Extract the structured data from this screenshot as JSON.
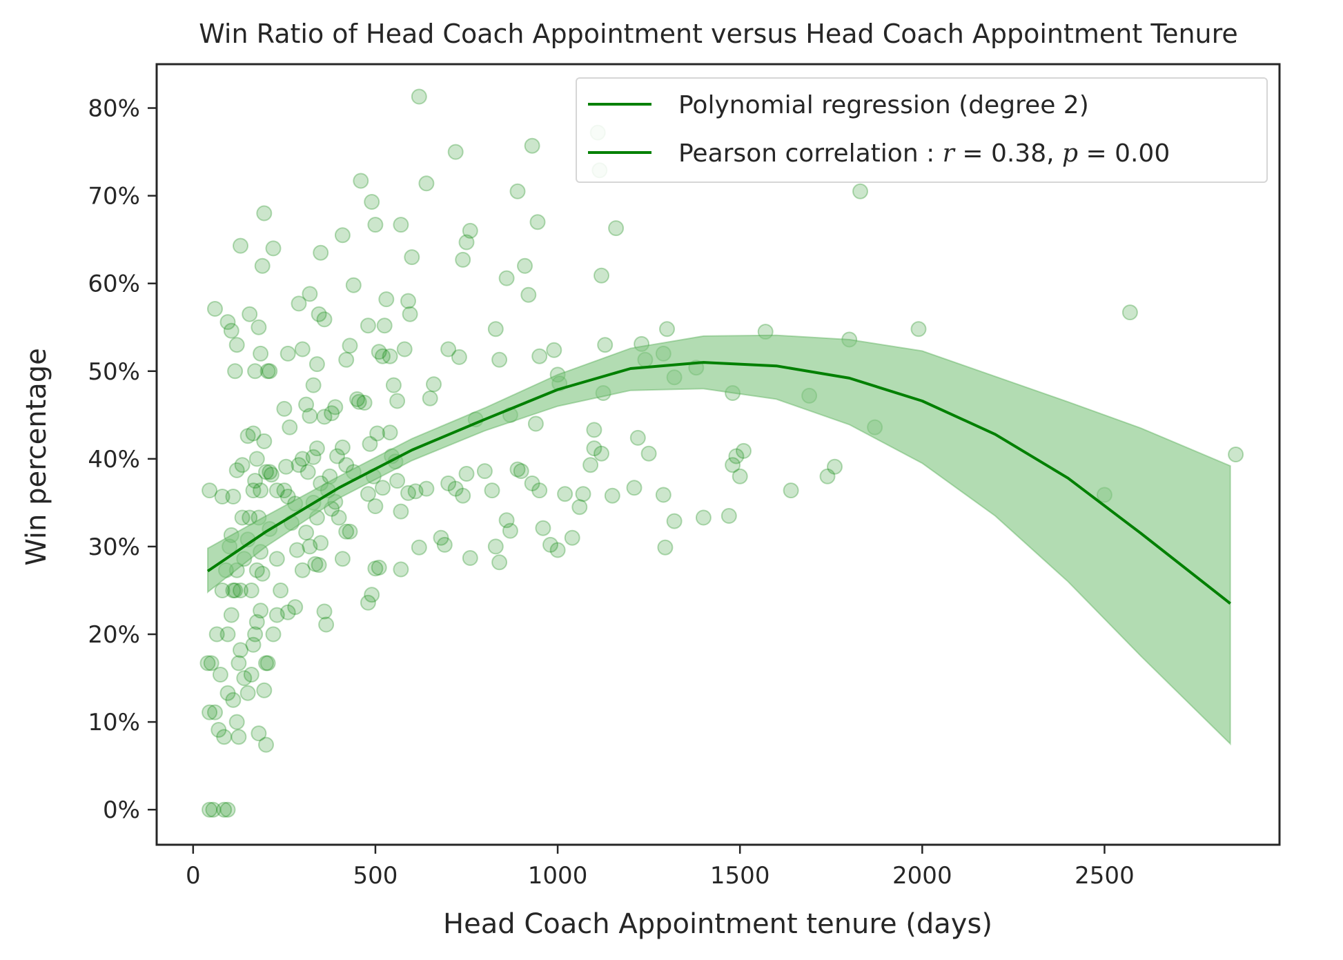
{
  "chart_data": {
    "type": "scatter",
    "title": "Win Ratio of Head Coach Appointment versus Head Coach Appointment Tenure",
    "xlabel": "Head Coach Appointment tenure (days)",
    "ylabel": "Win percentage",
    "xlim": [
      -100,
      2980
    ],
    "ylim": [
      -4,
      85
    ],
    "xticks": [
      0,
      500,
      1000,
      1500,
      2000,
      2500
    ],
    "xtick_labels": [
      "0",
      "500",
      "1000",
      "1500",
      "2000",
      "2500"
    ],
    "yticks": [
      0,
      10,
      20,
      30,
      40,
      50,
      60,
      70,
      80
    ],
    "ytick_labels": [
      "0%",
      "10%",
      "20%",
      "30%",
      "40%",
      "50%",
      "60%",
      "70%",
      "80%"
    ],
    "grid": false,
    "legend_position": "top-right",
    "colors": {
      "series": "#008000",
      "band": "#7fc47f",
      "axes": "#262626"
    },
    "legend": [
      {
        "label": "Polynomial regression (degree 2)"
      },
      {
        "label_prefix": "Pearson correlation : ",
        "r_symbol": "r",
        "r_value": " = 0.38, ",
        "p_symbol": "p",
        "p_value": " = 0.00"
      }
    ],
    "regression": {
      "x": [
        40,
        200,
        400,
        600,
        800,
        1000,
        1200,
        1400,
        1600,
        1800,
        2000,
        2200,
        2400,
        2600,
        2845
      ],
      "y": [
        27.2,
        31.7,
        36.7,
        41.0,
        44.5,
        47.9,
        50.3,
        51.0,
        50.6,
        49.2,
        46.6,
        42.8,
        37.8,
        31.5,
        23.5
      ],
      "ci_lower": [
        24.8,
        30.0,
        35.5,
        39.8,
        43.2,
        46.0,
        47.8,
        48.0,
        46.8,
        43.9,
        39.5,
        33.5,
        26.0,
        17.5,
        7.5
      ],
      "ci_upper": [
        29.8,
        33.5,
        38.0,
        42.3,
        45.8,
        49.6,
        52.6,
        54.0,
        54.1,
        53.6,
        52.3,
        49.4,
        46.5,
        43.5,
        39.2
      ]
    },
    "points": [
      [
        45,
        0
      ],
      [
        55,
        0
      ],
      [
        85,
        0
      ],
      [
        95,
        0
      ],
      [
        40,
        16.7
      ],
      [
        50,
        16.7
      ],
      [
        45,
        11.1
      ],
      [
        60,
        11.1
      ],
      [
        70,
        9.1
      ],
      [
        85,
        8.3
      ],
      [
        95,
        13.3
      ],
      [
        110,
        12.5
      ],
      [
        120,
        10.0
      ],
      [
        125,
        8.3
      ],
      [
        180,
        8.7
      ],
      [
        200,
        7.4
      ],
      [
        75,
        15.4
      ],
      [
        95,
        20.0
      ],
      [
        105,
        22.2
      ],
      [
        110,
        25.0
      ],
      [
        125,
        16.7
      ],
      [
        130,
        18.2
      ],
      [
        140,
        15.0
      ],
      [
        150,
        13.3
      ],
      [
        160,
        15.4
      ],
      [
        165,
        18.8
      ],
      [
        170,
        20.0
      ],
      [
        175,
        21.4
      ],
      [
        185,
        22.7
      ],
      [
        195,
        13.6
      ],
      [
        200,
        16.7
      ],
      [
        205,
        16.7
      ],
      [
        220,
        20.0
      ],
      [
        230,
        22.2
      ],
      [
        260,
        22.5
      ],
      [
        280,
        23.1
      ],
      [
        65,
        20.0
      ],
      [
        80,
        25.0
      ],
      [
        90,
        27.3
      ],
      [
        100,
        30.0
      ],
      [
        105,
        31.3
      ],
      [
        115,
        25.0
      ],
      [
        120,
        27.3
      ],
      [
        130,
        25.0
      ],
      [
        135,
        33.3
      ],
      [
        140,
        28.6
      ],
      [
        150,
        30.8
      ],
      [
        155,
        33.3
      ],
      [
        160,
        25.0
      ],
      [
        165,
        36.4
      ],
      [
        170,
        37.5
      ],
      [
        175,
        27.3
      ],
      [
        180,
        33.3
      ],
      [
        185,
        29.4
      ],
      [
        190,
        26.9
      ],
      [
        200,
        38.5
      ],
      [
        210,
        32.0
      ],
      [
        215,
        38.2
      ],
      [
        230,
        28.6
      ],
      [
        240,
        25.0
      ],
      [
        250,
        36.4
      ],
      [
        260,
        35.7
      ],
      [
        270,
        32.7
      ],
      [
        285,
        29.6
      ],
      [
        300,
        27.3
      ],
      [
        310,
        31.6
      ],
      [
        320,
        30.0
      ],
      [
        330,
        35.0
      ],
      [
        335,
        28.0
      ],
      [
        340,
        33.3
      ],
      [
        345,
        27.9
      ],
      [
        350,
        30.4
      ],
      [
        360,
        22.6
      ],
      [
        365,
        21.1
      ],
      [
        370,
        36.4
      ],
      [
        380,
        34.3
      ],
      [
        390,
        35.1
      ],
      [
        400,
        33.3
      ],
      [
        410,
        28.6
      ],
      [
        420,
        31.7
      ],
      [
        430,
        31.7
      ],
      [
        480,
        23.6
      ],
      [
        490,
        24.5
      ],
      [
        500,
        27.5
      ],
      [
        510,
        27.6
      ],
      [
        570,
        27.4
      ],
      [
        620,
        29.9
      ],
      [
        45,
        36.4
      ],
      [
        80,
        35.7
      ],
      [
        110,
        35.7
      ],
      [
        120,
        38.7
      ],
      [
        135,
        39.3
      ],
      [
        150,
        42.6
      ],
      [
        165,
        42.9
      ],
      [
        175,
        40.0
      ],
      [
        185,
        36.4
      ],
      [
        195,
        42.0
      ],
      [
        210,
        38.5
      ],
      [
        230,
        36.4
      ],
      [
        255,
        39.1
      ],
      [
        265,
        43.6
      ],
      [
        280,
        34.9
      ],
      [
        290,
        39.3
      ],
      [
        300,
        40.0
      ],
      [
        315,
        38.5
      ],
      [
        320,
        44.9
      ],
      [
        330,
        40.2
      ],
      [
        340,
        41.2
      ],
      [
        350,
        37.2
      ],
      [
        360,
        44.8
      ],
      [
        375,
        38.0
      ],
      [
        380,
        45.2
      ],
      [
        395,
        40.3
      ],
      [
        410,
        41.3
      ],
      [
        420,
        39.3
      ],
      [
        440,
        38.5
      ],
      [
        455,
        46.5
      ],
      [
        470,
        46.4
      ],
      [
        480,
        36.0
      ],
      [
        485,
        41.7
      ],
      [
        495,
        38.0
      ],
      [
        500,
        34.6
      ],
      [
        505,
        42.9
      ],
      [
        520,
        36.7
      ],
      [
        540,
        43.0
      ],
      [
        545,
        40.3
      ],
      [
        555,
        39.7
      ],
      [
        560,
        37.5
      ],
      [
        570,
        34.0
      ],
      [
        590,
        36.1
      ],
      [
        610,
        36.3
      ],
      [
        640,
        36.6
      ],
      [
        680,
        31.0
      ],
      [
        690,
        30.2
      ],
      [
        700,
        37.2
      ],
      [
        720,
        36.6
      ],
      [
        740,
        35.8
      ],
      [
        750,
        38.3
      ],
      [
        760,
        28.7
      ],
      [
        800,
        38.6
      ],
      [
        820,
        36.4
      ],
      [
        830,
        30.0
      ],
      [
        840,
        28.2
      ],
      [
        860,
        33.0
      ],
      [
        870,
        31.8
      ],
      [
        890,
        38.8
      ],
      [
        930,
        37.2
      ],
      [
        950,
        36.4
      ],
      [
        960,
        32.1
      ],
      [
        980,
        30.2
      ],
      [
        1000,
        29.6
      ],
      [
        1020,
        36.0
      ],
      [
        1040,
        31.0
      ],
      [
        1060,
        34.5
      ],
      [
        1070,
        36.0
      ],
      [
        1090,
        39.3
      ],
      [
        1100,
        41.2
      ],
      [
        1120,
        40.6
      ],
      [
        1150,
        35.8
      ],
      [
        1210,
        36.7
      ],
      [
        1220,
        42.4
      ],
      [
        1250,
        40.6
      ],
      [
        1290,
        35.9
      ],
      [
        1295,
        29.9
      ],
      [
        1320,
        32.9
      ],
      [
        1400,
        33.3
      ],
      [
        1470,
        33.5
      ],
      [
        1480,
        39.3
      ],
      [
        1490,
        40.3
      ],
      [
        1500,
        38.0
      ],
      [
        1510,
        40.9
      ],
      [
        1640,
        36.4
      ],
      [
        1740,
        38.0
      ],
      [
        1760,
        39.1
      ],
      [
        1870,
        43.6
      ],
      [
        2500,
        35.9
      ],
      [
        2860,
        40.5
      ],
      [
        60,
        57.1
      ],
      [
        95,
        55.6
      ],
      [
        105,
        54.6
      ],
      [
        115,
        50.0
      ],
      [
        120,
        53.0
      ],
      [
        130,
        64.3
      ],
      [
        155,
        56.5
      ],
      [
        170,
        50.0
      ],
      [
        180,
        55.0
      ],
      [
        185,
        52.0
      ],
      [
        190,
        62.0
      ],
      [
        195,
        68.0
      ],
      [
        205,
        50.0
      ],
      [
        210,
        50.0
      ],
      [
        220,
        64.0
      ],
      [
        250,
        45.7
      ],
      [
        260,
        52.0
      ],
      [
        290,
        57.7
      ],
      [
        300,
        52.5
      ],
      [
        310,
        46.2
      ],
      [
        320,
        58.8
      ],
      [
        330,
        48.4
      ],
      [
        340,
        50.8
      ],
      [
        345,
        56.5
      ],
      [
        350,
        63.5
      ],
      [
        360,
        55.9
      ],
      [
        390,
        45.9
      ],
      [
        410,
        65.5
      ],
      [
        420,
        51.3
      ],
      [
        430,
        52.9
      ],
      [
        440,
        59.8
      ],
      [
        450,
        46.8
      ],
      [
        460,
        71.7
      ],
      [
        480,
        55.2
      ],
      [
        490,
        69.3
      ],
      [
        500,
        66.7
      ],
      [
        510,
        52.2
      ],
      [
        520,
        51.7
      ],
      [
        525,
        55.2
      ],
      [
        530,
        58.2
      ],
      [
        540,
        51.7
      ],
      [
        550,
        48.4
      ],
      [
        560,
        46.6
      ],
      [
        570,
        66.7
      ],
      [
        580,
        52.5
      ],
      [
        590,
        58.0
      ],
      [
        595,
        56.5
      ],
      [
        600,
        63.0
      ],
      [
        620,
        81.3
      ],
      [
        640,
        71.4
      ],
      [
        650,
        46.9
      ],
      [
        660,
        48.5
      ],
      [
        700,
        52.5
      ],
      [
        720,
        75.0
      ],
      [
        730,
        51.6
      ],
      [
        740,
        62.7
      ],
      [
        750,
        64.7
      ],
      [
        760,
        66.0
      ],
      [
        775,
        44.5
      ],
      [
        830,
        54.8
      ],
      [
        840,
        51.3
      ],
      [
        860,
        60.6
      ],
      [
        870,
        45.0
      ],
      [
        890,
        70.5
      ],
      [
        900,
        38.6
      ],
      [
        910,
        62.0
      ],
      [
        920,
        58.7
      ],
      [
        930,
        75.7
      ],
      [
        940,
        44.0
      ],
      [
        945,
        67.0
      ],
      [
        950,
        51.7
      ],
      [
        990,
        52.4
      ],
      [
        1000,
        49.6
      ],
      [
        1005,
        48.6
      ],
      [
        1100,
        43.3
      ],
      [
        1110,
        77.2
      ],
      [
        1115,
        72.9
      ],
      [
        1120,
        60.9
      ],
      [
        1125,
        47.5
      ],
      [
        1130,
        53.0
      ],
      [
        1160,
        66.3
      ],
      [
        1230,
        53.1
      ],
      [
        1240,
        51.3
      ],
      [
        1290,
        52.0
      ],
      [
        1300,
        54.8
      ],
      [
        1320,
        49.3
      ],
      [
        1380,
        50.4
      ],
      [
        1480,
        47.5
      ],
      [
        1570,
        54.5
      ],
      [
        1690,
        47.2
      ],
      [
        1800,
        53.6
      ],
      [
        1830,
        70.5
      ],
      [
        1990,
        54.8
      ],
      [
        2570,
        56.7
      ]
    ]
  }
}
